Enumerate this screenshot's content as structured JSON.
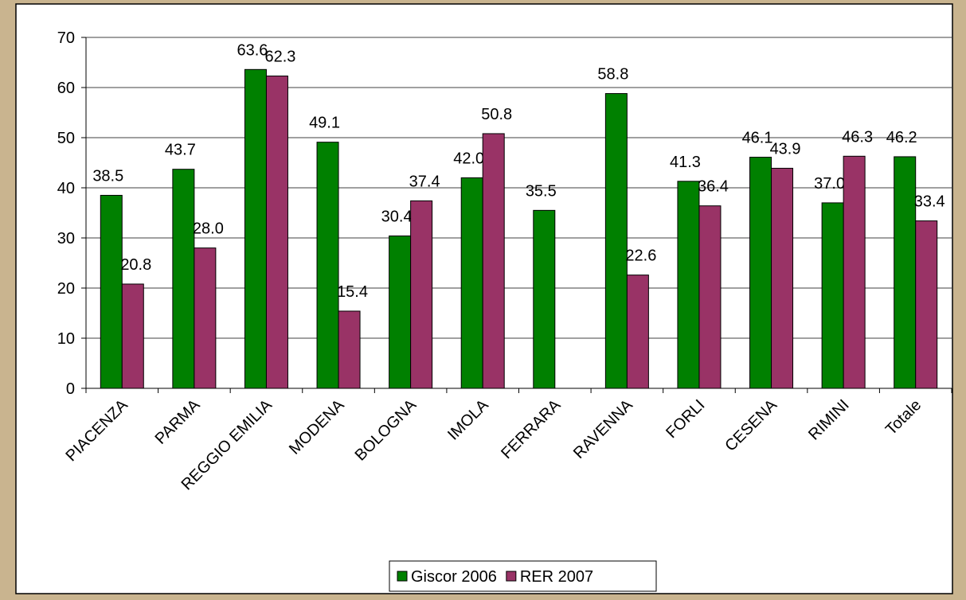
{
  "chart_data": {
    "type": "bar",
    "categories": [
      "PIACENZA",
      "PARMA",
      "REGGIO EMILIA",
      "MODENA",
      "BOLOGNA",
      "IMOLA",
      "FERRARA",
      "RAVENNA",
      "FORLI",
      "CESENA",
      "RIMINI",
      "Totale"
    ],
    "series": [
      {
        "name": "Giscor 2006",
        "color": "#008000",
        "values": [
          38.5,
          43.7,
          63.6,
          49.1,
          30.4,
          42.0,
          35.5,
          58.8,
          41.3,
          46.1,
          37.0,
          46.2
        ],
        "value_labels": [
          "38.5",
          "43.7",
          "63.6",
          "49.1",
          "30.4",
          "42.0",
          "35.5",
          "58.8",
          "41.3",
          "46.1",
          "37.0",
          "46.2"
        ]
      },
      {
        "name": "RER 2007",
        "color": "#993366",
        "values": [
          20.8,
          28.0,
          62.3,
          15.4,
          37.4,
          50.8,
          null,
          22.6,
          36.4,
          43.9,
          46.3,
          33.4
        ],
        "value_labels": [
          "20.8",
          "28.0",
          "62.3",
          "15.4",
          "37.4",
          "50.8",
          null,
          "22.6",
          "36.4",
          "43.9",
          "46.3",
          "33.4"
        ]
      }
    ],
    "ylim": [
      0,
      70
    ],
    "yticks": [
      0,
      10,
      20,
      30,
      40,
      50,
      60,
      70
    ],
    "grid": true,
    "legend": "bottom"
  }
}
